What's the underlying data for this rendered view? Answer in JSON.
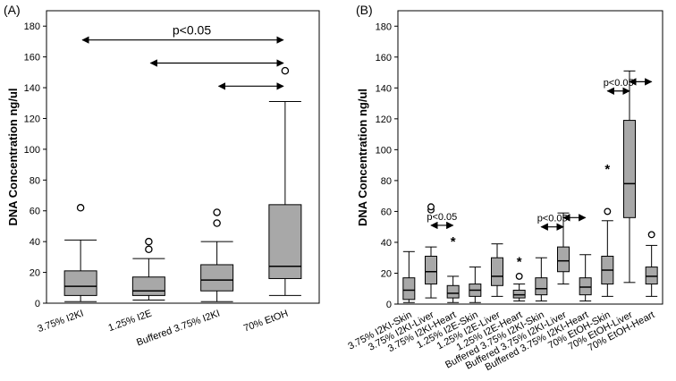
{
  "colors": {
    "box_fill": "#a8a8a8",
    "stroke": "#000000",
    "background": "#ffffff"
  },
  "chart_data": [
    {
      "type": "box",
      "panel_label": "(A)",
      "ylabel": "DNA Concentration ng/ul",
      "ylim": [
        0,
        190
      ],
      "yticks": [
        0,
        20,
        40,
        60,
        80,
        100,
        120,
        140,
        160,
        180
      ],
      "categories": [
        "3.75% I2KI",
        "1.25% I2E",
        "Buffered 3.75% I2KI",
        "70% EtOH"
      ],
      "boxes": [
        {
          "min": 1,
          "q1": 5,
          "median": 11,
          "q3": 21,
          "max": 41,
          "outliers": [
            62
          ],
          "extremes": []
        },
        {
          "min": 2,
          "q1": 5,
          "median": 8,
          "q3": 17,
          "max": 29,
          "outliers": [
            35,
            40
          ],
          "extremes": []
        },
        {
          "min": 1,
          "q1": 8,
          "median": 15,
          "q3": 25,
          "max": 40,
          "outliers": [
            52,
            59
          ],
          "extremes": []
        },
        {
          "min": 5,
          "q1": 16,
          "median": 24,
          "q3": 64,
          "max": 131,
          "outliers": [
            151
          ],
          "extremes": []
        }
      ],
      "significance": {
        "label": "p<0.05",
        "arrows": [
          {
            "from": 0,
            "to": 3,
            "y": 171
          },
          {
            "from": 1,
            "to": 3,
            "y": 156
          },
          {
            "from": 2,
            "to": 3,
            "y": 141
          }
        ]
      }
    },
    {
      "type": "box",
      "panel_label": "(B)",
      "ylabel": "DNA Concentration ng/ul",
      "ylim": [
        0,
        190
      ],
      "yticks": [
        0,
        20,
        40,
        60,
        80,
        100,
        120,
        140,
        160,
        180
      ],
      "categories": [
        "3.75% I2KI-Skin",
        "3.75% I2KI-Liver",
        "3.75% I2KI-Heart",
        "1.25% I2E-Skin",
        "1.25% I2E-Liver",
        "1.25% I2E-Heart",
        "Buffered 3.75% I2KI-Skin",
        "Buffered 3.75% I2KI-Liver",
        "Buffered 3.75% I2KI-Heart",
        "70% EtOH-Skin",
        "70% EtOH-Liver",
        "70% EtOH-Heart"
      ],
      "boxes": [
        {
          "min": 1,
          "q1": 3,
          "median": 9,
          "q3": 17,
          "max": 34,
          "outliers": [],
          "extremes": []
        },
        {
          "min": 4,
          "q1": 13,
          "median": 21,
          "q3": 31,
          "max": 37,
          "outliers": [
            61,
            63
          ],
          "extremes": []
        },
        {
          "min": 1,
          "q1": 4,
          "median": 7,
          "q3": 12,
          "max": 18,
          "outliers": [],
          "extremes": [
            41
          ]
        },
        {
          "min": 1,
          "q1": 5,
          "median": 9,
          "q3": 13,
          "max": 24,
          "outliers": [],
          "extremes": []
        },
        {
          "min": 5,
          "q1": 12,
          "median": 18,
          "q3": 30,
          "max": 39,
          "outliers": [],
          "extremes": []
        },
        {
          "min": 2,
          "q1": 4,
          "median": 6,
          "q3": 9,
          "max": 13,
          "outliers": [
            18
          ],
          "extremes": [
            28
          ]
        },
        {
          "min": 2,
          "q1": 6,
          "median": 10,
          "q3": 17,
          "max": 30,
          "outliers": [],
          "extremes": []
        },
        {
          "min": 13,
          "q1": 21,
          "median": 28,
          "q3": 37,
          "max": 59,
          "outliers": [],
          "extremes": []
        },
        {
          "min": 2,
          "q1": 6,
          "median": 11,
          "q3": 17,
          "max": 32,
          "outliers": [],
          "extremes": []
        },
        {
          "min": 5,
          "q1": 13,
          "median": 22,
          "q3": 31,
          "max": 54,
          "outliers": [
            60
          ],
          "extremes": [
            88
          ]
        },
        {
          "min": 14,
          "q1": 56,
          "median": 78,
          "q3": 119,
          "max": 151,
          "outliers": [],
          "extremes": []
        },
        {
          "min": 5,
          "q1": 13,
          "median": 18,
          "q3": 24,
          "max": 38,
          "outliers": [
            45
          ],
          "extremes": []
        }
      ],
      "significance": {
        "label": "p<0.05",
        "arrows": [
          {
            "from": 1,
            "to": 2,
            "y": 51,
            "label": "p<0.05"
          },
          {
            "from": 6,
            "to": 7,
            "y": 50,
            "label": "p<0.05"
          },
          {
            "from": 7,
            "to": 8,
            "y": 56
          },
          {
            "from": 9,
            "to": 10,
            "y": 138,
            "label": "p<0.05"
          },
          {
            "from": 10,
            "to": 11,
            "y": 144
          }
        ]
      }
    }
  ]
}
